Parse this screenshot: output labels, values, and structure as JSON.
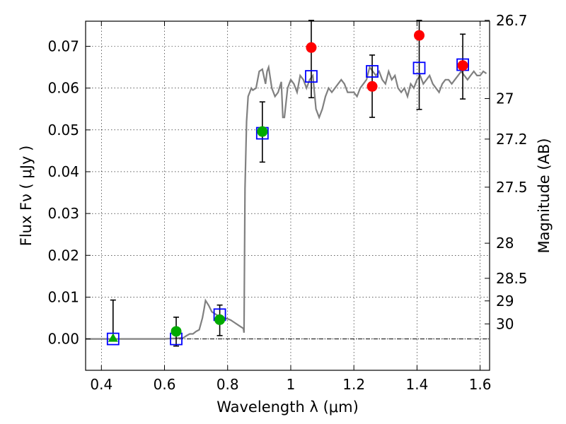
{
  "chart_data": {
    "type": "scatter",
    "xlabel": "Wavelength  λ (μm)",
    "ylabel": "Flux  Fν  ( μJy )",
    "y2label": "Magnitude (AB)",
    "xlim": [
      0.35,
      1.63
    ],
    "ylim": [
      -0.0075,
      0.076
    ],
    "grid": true,
    "x_ticks": [
      0.4,
      0.6,
      0.8,
      1.0,
      1.2,
      1.4,
      1.6
    ],
    "x_tick_labels": [
      "0.4",
      "0.6",
      "0.8",
      "1",
      "1.2",
      "1.4",
      "1.6"
    ],
    "y_ticks": [
      0.0,
      0.01,
      0.02,
      0.03,
      0.04,
      0.05,
      0.06,
      0.07
    ],
    "y_tick_labels": [
      "0.00",
      "0.01",
      "0.02",
      "0.03",
      "0.04",
      "0.05",
      "0.06",
      "0.07"
    ],
    "y2_ticks": [
      {
        "label": "26.7",
        "flux": 0.0762
      },
      {
        "label": "27",
        "flux": 0.0575
      },
      {
        "label": "27.2",
        "flux": 0.0478
      },
      {
        "label": "27.5",
        "flux": 0.0363
      },
      {
        "label": "28",
        "flux": 0.0229
      },
      {
        "label": "28.5",
        "flux": 0.0145
      },
      {
        "label": "29",
        "flux": 0.0091
      },
      {
        "label": "30",
        "flux": 0.0036
      }
    ],
    "model_spectrum": {
      "x": [
        0.35,
        0.5,
        0.6,
        0.66,
        0.67,
        0.68,
        0.69,
        0.7,
        0.71,
        0.72,
        0.725,
        0.73,
        0.74,
        0.75,
        0.76,
        0.77,
        0.78,
        0.79,
        0.8,
        0.81,
        0.82,
        0.83,
        0.84,
        0.85,
        0.852,
        0.855,
        0.86,
        0.865,
        0.87,
        0.875,
        0.88,
        0.89,
        0.9,
        0.91,
        0.92,
        0.925,
        0.93,
        0.94,
        0.95,
        0.96,
        0.97,
        0.975,
        0.98,
        0.99,
        1.0,
        1.01,
        1.02,
        1.03,
        1.04,
        1.05,
        1.06,
        1.07,
        1.08,
        1.09,
        1.1,
        1.11,
        1.12,
        1.13,
        1.14,
        1.15,
        1.16,
        1.17,
        1.18,
        1.19,
        1.2,
        1.21,
        1.22,
        1.23,
        1.24,
        1.25,
        1.26,
        1.27,
        1.28,
        1.29,
        1.3,
        1.31,
        1.32,
        1.33,
        1.34,
        1.35,
        1.36,
        1.37,
        1.38,
        1.39,
        1.4,
        1.41,
        1.42,
        1.43,
        1.44,
        1.45,
        1.46,
        1.47,
        1.48,
        1.49,
        1.5,
        1.51,
        1.52,
        1.53,
        1.54,
        1.55,
        1.56,
        1.57,
        1.58,
        1.59,
        1.6,
        1.61,
        1.62
      ],
      "y": [
        0.0,
        0.0,
        0.0,
        0.0003,
        0.0008,
        0.0012,
        0.0012,
        0.0018,
        0.0022,
        0.005,
        0.007,
        0.0092,
        0.008,
        0.0065,
        0.006,
        0.0055,
        0.0052,
        0.005,
        0.0048,
        0.0045,
        0.004,
        0.0035,
        0.003,
        0.0025,
        0.0015,
        0.036,
        0.052,
        0.058,
        0.059,
        0.06,
        0.0595,
        0.06,
        0.064,
        0.0645,
        0.061,
        0.064,
        0.065,
        0.06,
        0.058,
        0.059,
        0.0615,
        0.053,
        0.053,
        0.06,
        0.062,
        0.061,
        0.059,
        0.063,
        0.062,
        0.06,
        0.062,
        0.063,
        0.055,
        0.053,
        0.055,
        0.058,
        0.06,
        0.059,
        0.06,
        0.061,
        0.062,
        0.061,
        0.059,
        0.059,
        0.059,
        0.058,
        0.06,
        0.061,
        0.062,
        0.065,
        0.064,
        0.063,
        0.064,
        0.062,
        0.061,
        0.064,
        0.062,
        0.063,
        0.06,
        0.059,
        0.06,
        0.058,
        0.061,
        0.06,
        0.062,
        0.063,
        0.061,
        0.062,
        0.063,
        0.061,
        0.06,
        0.059,
        0.061,
        0.062,
        0.062,
        0.061,
        0.062,
        0.063,
        0.064,
        0.063,
        0.062,
        0.063,
        0.064,
        0.063,
        0.063,
        0.064,
        0.0635
      ]
    },
    "error_bars": [
      {
        "x": 0.437,
        "low": -0.0001,
        "high": 0.0093
      },
      {
        "x": 0.637,
        "low": -0.0017,
        "high": 0.0052
      },
      {
        "x": 0.775,
        "low": 0.0008,
        "high": 0.0081
      },
      {
        "x": 0.91,
        "low": 0.0423,
        "high": 0.0567
      },
      {
        "x": 1.065,
        "low": 0.0577,
        "high": 0.0762
      },
      {
        "x": 1.258,
        "low": 0.053,
        "high": 0.0679
      },
      {
        "x": 1.407,
        "low": 0.0549,
        "high": 0.0762
      },
      {
        "x": 1.545,
        "low": 0.0574,
        "high": 0.0729
      }
    ],
    "model_photometry": [
      {
        "x": 0.437,
        "y": 0.0
      },
      {
        "x": 0.637,
        "y": 0.0
      },
      {
        "x": 0.775,
        "y": 0.0058
      },
      {
        "x": 0.91,
        "y": 0.0492
      },
      {
        "x": 1.065,
        "y": 0.0628
      },
      {
        "x": 1.258,
        "y": 0.064
      },
      {
        "x": 1.407,
        "y": 0.0648
      },
      {
        "x": 1.545,
        "y": 0.0656
      }
    ],
    "observed_optical": [
      {
        "x": 0.637,
        "y": 0.0018
      },
      {
        "x": 0.775,
        "y": 0.0046
      },
      {
        "x": 0.91,
        "y": 0.0496
      }
    ],
    "observed_upper_limit": [
      {
        "x": 0.437,
        "y": 0.0
      }
    ],
    "observed_nir": [
      {
        "x": 1.065,
        "y": 0.0697
      },
      {
        "x": 1.258,
        "y": 0.0604
      },
      {
        "x": 1.407,
        "y": 0.0726
      },
      {
        "x": 1.545,
        "y": 0.0654
      }
    ],
    "colors": {
      "spectrum": "#808080",
      "model_box": "#0000ff",
      "optical": "#00aa00",
      "nir": "#ff0000",
      "errorbar": "#000000"
    }
  }
}
